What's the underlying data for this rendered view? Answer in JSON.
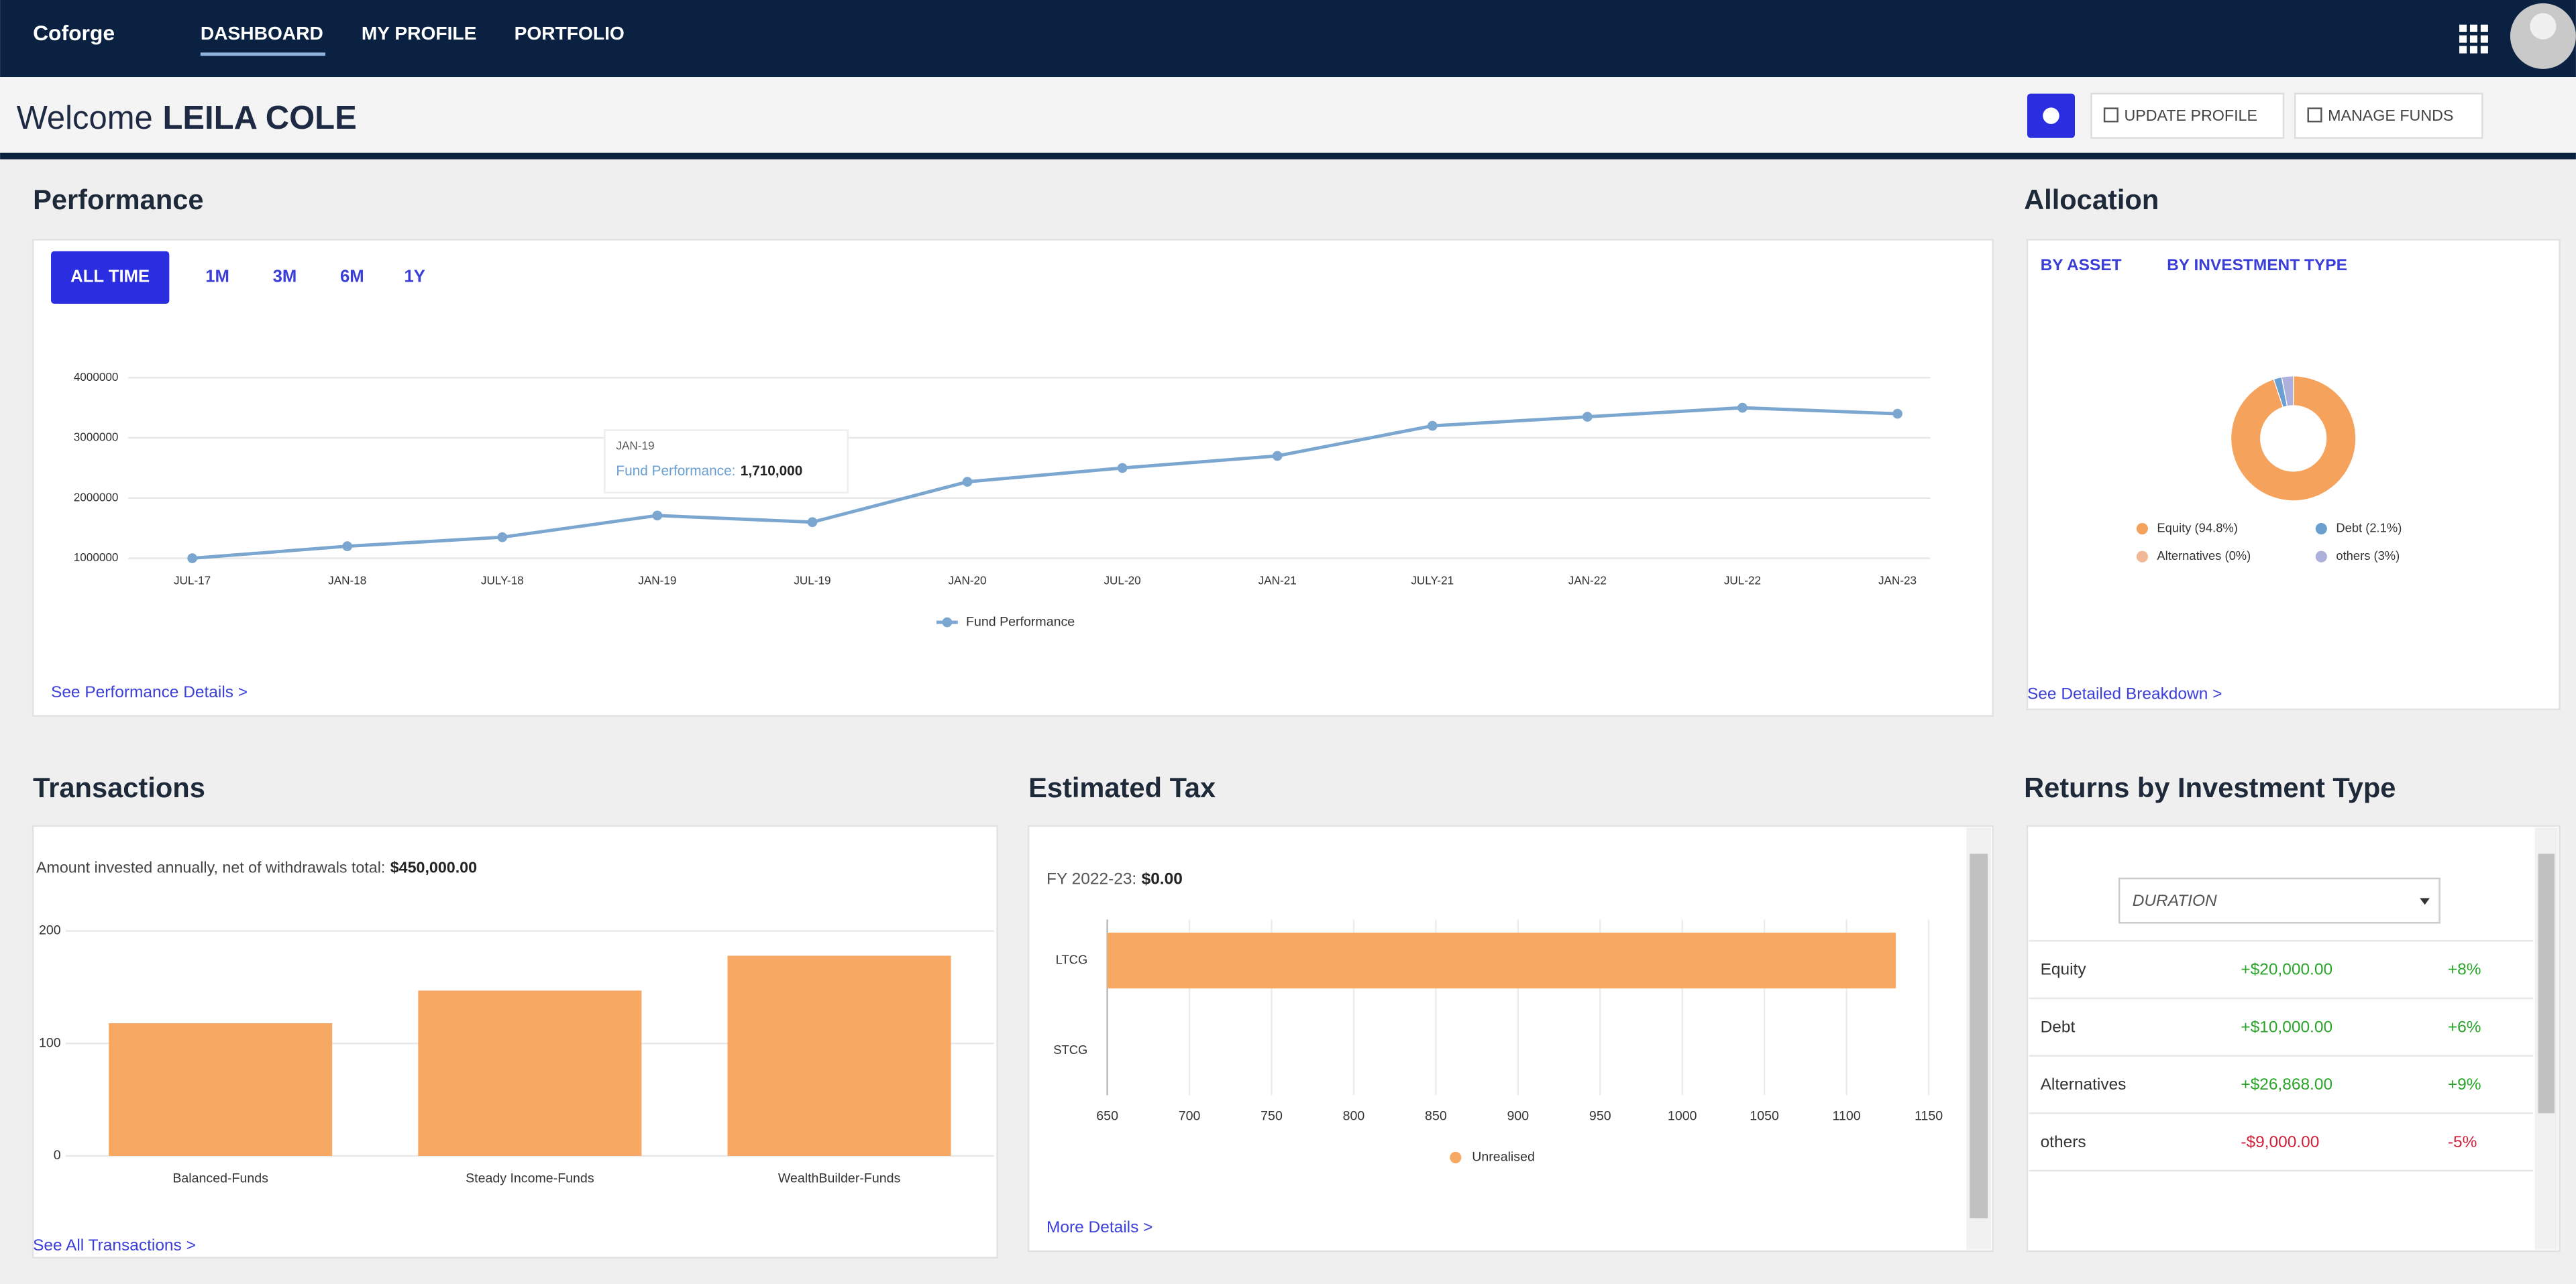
{
  "nav": {
    "logo": "Coforge",
    "links": [
      "DASHBOARD",
      "MY PROFILE",
      "PORTFOLIO"
    ]
  },
  "header": {
    "greeting": "Welcome",
    "user": "LEILA COLE",
    "buttons": [
      "UPDATE PROFILE",
      "MANAGE FUNDS"
    ]
  },
  "performance": {
    "title": "Performance",
    "ranges": [
      "ALL TIME",
      "1M",
      "3M",
      "6M",
      "1Y"
    ],
    "tooltip": {
      "date": "JAN-19",
      "label": "Fund Performance:",
      "value": "1,710,000"
    },
    "link": "See Performance Details >"
  },
  "allocation": {
    "title": "Allocation",
    "tabs": [
      "BY ASSET",
      "BY INVESTMENT TYPE"
    ],
    "link": "See Detailed Breakdown >"
  },
  "transactions": {
    "title": "Transactions",
    "summary": "Amount invested annually, net of withdrawals total:",
    "total": "$450,000.00",
    "link": "See All Transactions >"
  },
  "tax": {
    "title": "Estimated Tax",
    "period": "FY 2022-23:",
    "amount": "$0.00",
    "link": "More Details >"
  },
  "returns": {
    "title": "Returns by Investment Type",
    "dropdown": "DURATION",
    "rows": [
      [
        "Equity",
        "+$20,000.00",
        "+8%"
      ],
      [
        "Debt",
        "+$10,000.00",
        "+6%"
      ],
      [
        "Alternatives",
        "+$26,868.00",
        "+9%"
      ],
      [
        "others",
        "-$9,000.00",
        "-5%"
      ]
    ]
  },
  "chart_data": [
    {
      "type": "line",
      "categories": [
        "JUL-17",
        "JAN-18",
        "JULY-18",
        "JAN-19",
        "JUL-19",
        "JAN-20",
        "JUL-20",
        "JAN-21",
        "JULY-21",
        "JAN-22",
        "JUL-22",
        "JAN-23"
      ],
      "series": [
        {
          "name": "Fund Performance",
          "color": "#7aa6d0",
          "values": [
            1000000,
            1200000,
            1350000,
            1710000,
            1600000,
            2270000,
            2500000,
            2700000,
            3200000,
            3350000,
            3500000,
            3400000
          ]
        }
      ],
      "ylim": [
        1000000,
        4000000
      ],
      "yticks": [
        1000000,
        2000000,
        3000000,
        4000000
      ],
      "grid": true,
      "legend": "bottom"
    },
    {
      "type": "pie",
      "donut": true,
      "categories": [
        "Equity",
        "Debt",
        "Alternatives",
        "others"
      ],
      "values": [
        94.8,
        2.1,
        0,
        3
      ],
      "value_labels": [
        "Equity (94.8%)",
        "Debt (2.1%)",
        "Alternatives (0%)",
        "others (3%)"
      ],
      "colors": [
        "#f5a35c",
        "#6a9fd0",
        "#f2b896",
        "#aeb0dc"
      ],
      "legend": "bottom"
    },
    {
      "type": "bar",
      "categories": [
        "Balanced-Funds",
        "Steady Income-Funds",
        "WealthBuilder-Funds"
      ],
      "values": [
        118,
        147,
        178
      ],
      "color": "#f7a862",
      "ylim": [
        0,
        200
      ],
      "yticks": [
        0,
        100,
        200
      ],
      "grid": true
    },
    {
      "type": "hbar",
      "categories": [
        "LTCG",
        "STCG"
      ],
      "series": [
        {
          "name": "Unrealised",
          "color": "#f7a862",
          "values": [
            1130,
            null
          ]
        }
      ],
      "xlim": [
        650,
        1150
      ],
      "xticks": [
        650,
        700,
        750,
        800,
        850,
        900,
        950,
        1000,
        1050,
        1100,
        1150
      ],
      "grid": true,
      "legend": "bottom"
    }
  ]
}
